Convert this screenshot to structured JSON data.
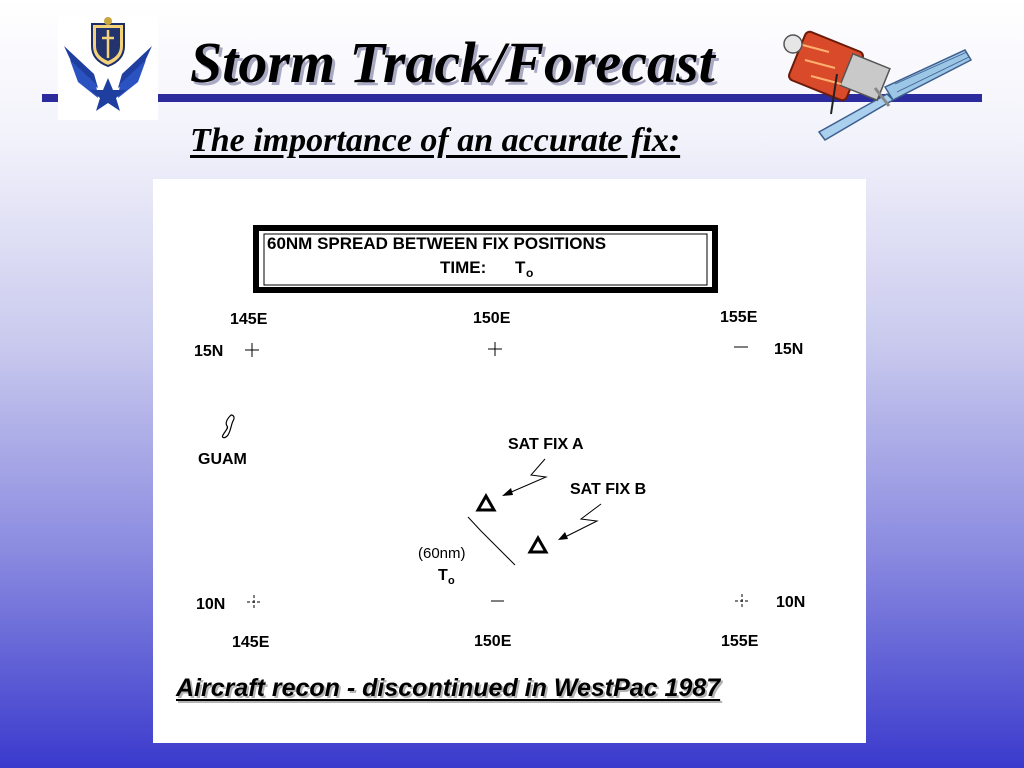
{
  "slide": {
    "title": "Storm Track/Forecast",
    "subtitle": "The importance of an accurate fix:",
    "caption": "Aircraft recon - discontinued in WestPac 1987"
  },
  "diagram": {
    "box_line1": "60NM SPREAD BETWEEN FIX POSITIONS",
    "box_time_label": "TIME:",
    "time_symbol": "T",
    "time_subscript": "o",
    "lon_145": "145E",
    "lon_150": "150E",
    "lon_155": "155E",
    "lat_15": "15N",
    "lat_10": "10N",
    "island": "GUAM",
    "sat_fix_a": "SAT FIX A",
    "sat_fix_b": "SAT FIX B",
    "distance": "(60nm)"
  },
  "icons": {
    "logo": "air-force-emblem-icon",
    "satellite": "satellite-icon",
    "fix_marker": "triangle-marker-icon"
  },
  "colors": {
    "rule": "#2b2b9e",
    "bg_top": "#ffffff",
    "bg_bottom": "#3a3acd"
  }
}
